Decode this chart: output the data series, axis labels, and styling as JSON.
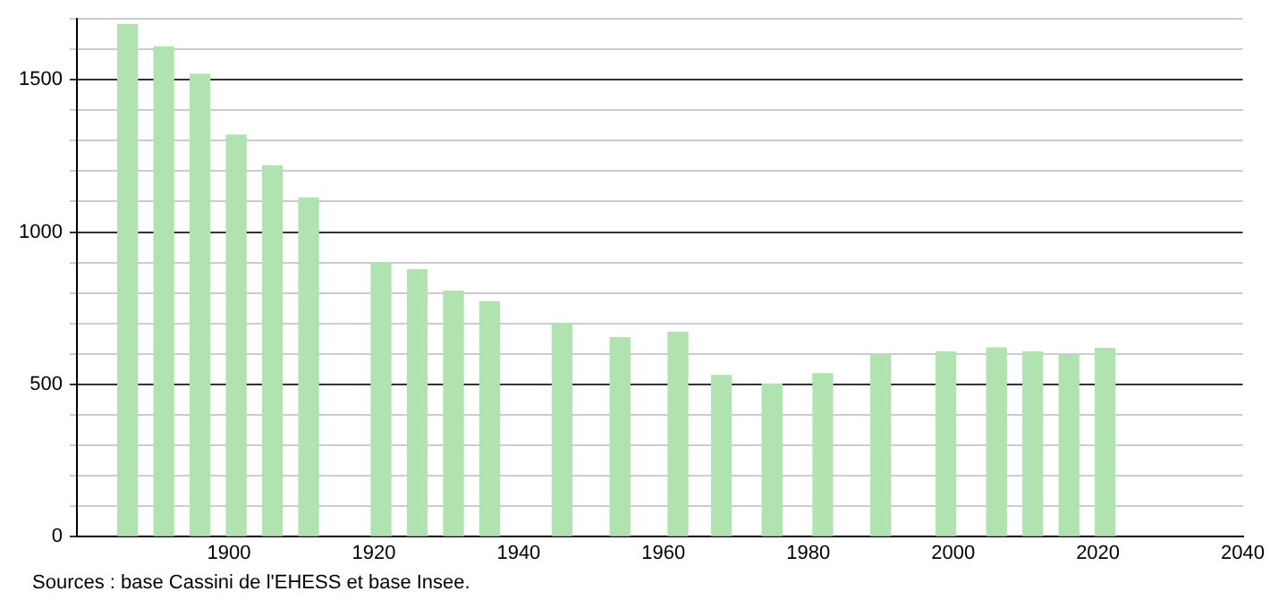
{
  "chart_data": {
    "type": "bar",
    "x": [
      1886,
      1891,
      1896,
      1901,
      1906,
      1911,
      1921,
      1926,
      1931,
      1936,
      1946,
      1954,
      1962,
      1968,
      1975,
      1982,
      1990,
      1999,
      2006,
      2011,
      2016,
      2021
    ],
    "values": [
      1682,
      1608,
      1518,
      1318,
      1218,
      1112,
      898,
      876,
      806,
      771,
      698,
      653,
      671,
      529,
      500,
      535,
      596,
      606,
      619,
      606,
      594,
      618
    ],
    "color": "#b0e3b0",
    "xlim": [
      1879,
      2040
    ],
    "xticks": [
      1900,
      1920,
      1940,
      1960,
      1980,
      2000,
      2020,
      2040
    ],
    "ylim": [
      0,
      1700
    ],
    "yticks": [
      0,
      {
        "value": 100,
        "label": null
      },
      {
        "value": 200,
        "label": null
      },
      {
        "value": 300,
        "label": null
      },
      {
        "value": 400,
        "label": null
      },
      500,
      {
        "value": 600,
        "label": null
      },
      {
        "value": 700,
        "label": null
      },
      {
        "value": 800,
        "label": null
      },
      {
        "value": 900,
        "label": null
      },
      1000,
      {
        "value": 1100,
        "label": null
      },
      {
        "value": 1200,
        "label": null
      },
      {
        "value": 1300,
        "label": null
      },
      {
        "value": 1400,
        "label": null
      },
      1500,
      {
        "value": 1600,
        "label": null
      },
      {
        "value": 1700,
        "label": null
      }
    ],
    "grid": "y",
    "annotations": [
      "Sources : base Cassini de l'EHESS et base Insee."
    ]
  }
}
